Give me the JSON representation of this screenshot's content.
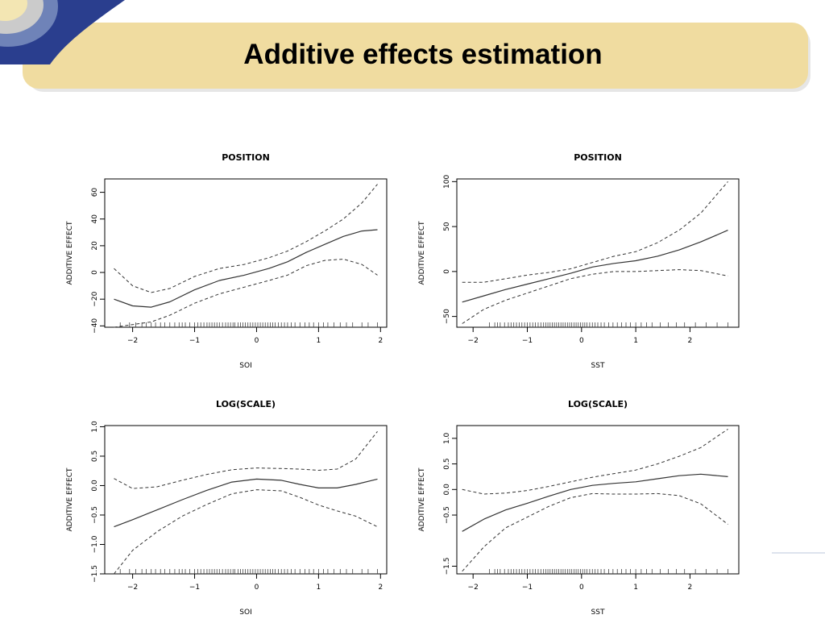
{
  "slide": {
    "title": "Additive effects estimation",
    "colors": {
      "banner": "#f0dca0",
      "banner_shadow": "#e6e6e6",
      "corner_dark": "#2a3e8e",
      "corner_mid": "#6f83b8",
      "corner_light": "#cbcbcb",
      "corner_pale": "#f3e6b3"
    }
  },
  "chart_data": [
    {
      "type": "line",
      "title": "POSITION",
      "xlabel": "SOI",
      "ylabel": "ADDITIVE EFFECT",
      "xlim": [
        -2.45,
        2.1
      ],
      "ylim": [
        -41,
        70
      ],
      "xticks": [
        -2,
        -1,
        0,
        1,
        2
      ],
      "xtick_labels": [
        "−2",
        "−1",
        "0",
        "1",
        "2"
      ],
      "yticks": [
        -40,
        -20,
        0,
        20,
        40,
        60
      ],
      "ytick_labels": [
        "−40",
        "−20",
        "0",
        "20",
        "40",
        "60"
      ],
      "grid": false,
      "series": [
        {
          "style": "solid",
          "x": [
            -2.3,
            -2.0,
            -1.7,
            -1.4,
            -1.0,
            -0.6,
            -0.2,
            0.2,
            0.5,
            0.8,
            1.1,
            1.4,
            1.7,
            1.95
          ],
          "y": [
            -20,
            -25,
            -26,
            -22,
            -13,
            -6,
            -2,
            3,
            8,
            15,
            21,
            27,
            31,
            32
          ]
        },
        {
          "style": "dashed",
          "x": [
            -2.3,
            -2.0,
            -1.7,
            -1.4,
            -1.0,
            -0.6,
            -0.2,
            0.2,
            0.5,
            0.8,
            1.1,
            1.4,
            1.7,
            1.95
          ],
          "y": [
            3,
            -10,
            -15,
            -12,
            -3,
            3,
            6,
            11,
            16,
            23,
            31,
            40,
            52,
            66
          ]
        },
        {
          "style": "dashed",
          "x": [
            -2.3,
            -2.0,
            -1.7,
            -1.4,
            -1.0,
            -0.6,
            -0.2,
            0.2,
            0.5,
            0.8,
            1.1,
            1.4,
            1.7,
            1.95
          ],
          "y": [
            -41,
            -39,
            -37,
            -32,
            -23,
            -16,
            -11,
            -6,
            -2,
            5,
            9,
            10,
            6,
            -2
          ]
        }
      ],
      "rug": [
        -2.2,
        -2.05,
        -1.95,
        -1.85,
        -1.78,
        -1.7,
        -1.63,
        -1.55,
        -1.48,
        -1.4,
        -1.32,
        -1.25,
        -1.2,
        -1.15,
        -1.08,
        -1.0,
        -0.95,
        -0.9,
        -0.85,
        -0.8,
        -0.76,
        -0.72,
        -0.68,
        -0.64,
        -0.6,
        -0.55,
        -0.5,
        -0.46,
        -0.42,
        -0.38,
        -0.35,
        -0.3,
        -0.26,
        -0.22,
        -0.18,
        -0.14,
        -0.1,
        -0.06,
        -0.02,
        0.02,
        0.06,
        0.1,
        0.14,
        0.18,
        0.22,
        0.26,
        0.3,
        0.35,
        0.4,
        0.45,
        0.5,
        0.56,
        0.62,
        0.7,
        0.78,
        0.85,
        0.92,
        1.0,
        1.08,
        1.15,
        1.25,
        1.35,
        1.45,
        1.55,
        1.7,
        1.8,
        1.95
      ]
    },
    {
      "type": "line",
      "title": "POSITION",
      "xlabel": "SST",
      "ylabel": "ADDITIVE EFFECT",
      "xlim": [
        -2.3,
        2.9
      ],
      "ylim": [
        -62,
        103
      ],
      "xticks": [
        -2,
        -1,
        0,
        1,
        2
      ],
      "xtick_labels": [
        "−2",
        "−1",
        "0",
        "1",
        "2"
      ],
      "yticks": [
        -50,
        0,
        50,
        100
      ],
      "ytick_labels": [
        "−50",
        "0",
        "50",
        "100"
      ],
      "grid": false,
      "series": [
        {
          "style": "solid",
          "x": [
            -2.2,
            -1.8,
            -1.4,
            -1.0,
            -0.6,
            -0.2,
            0.2,
            0.6,
            1.0,
            1.4,
            1.8,
            2.2,
            2.7
          ],
          "y": [
            -34,
            -27,
            -20,
            -14,
            -8,
            -2,
            5,
            9,
            12,
            17,
            24,
            33,
            46
          ]
        },
        {
          "style": "dashed",
          "x": [
            -2.2,
            -1.8,
            -1.4,
            -1.0,
            -0.6,
            -0.2,
            0.2,
            0.6,
            1.0,
            1.4,
            1.8,
            2.2,
            2.7
          ],
          "y": [
            -12,
            -12,
            -8,
            -4,
            -1,
            3,
            10,
            17,
            22,
            32,
            46,
            65,
            100
          ]
        },
        {
          "style": "dashed",
          "x": [
            -2.2,
            -1.8,
            -1.4,
            -1.0,
            -0.6,
            -0.2,
            0.2,
            0.6,
            1.0,
            1.4,
            1.8,
            2.2,
            2.7
          ],
          "y": [
            -58,
            -42,
            -32,
            -24,
            -16,
            -8,
            -3,
            0,
            0,
            1,
            2,
            1,
            -5
          ]
        }
      ],
      "rug": [
        -1.7,
        -1.6,
        -1.55,
        -1.5,
        -1.42,
        -1.35,
        -1.3,
        -1.25,
        -1.2,
        -1.15,
        -1.1,
        -1.05,
        -1.0,
        -0.95,
        -0.9,
        -0.85,
        -0.8,
        -0.75,
        -0.7,
        -0.66,
        -0.62,
        -0.58,
        -0.54,
        -0.5,
        -0.46,
        -0.42,
        -0.38,
        -0.34,
        -0.3,
        -0.26,
        -0.22,
        -0.18,
        -0.14,
        -0.1,
        -0.06,
        -0.02,
        0.02,
        0.06,
        0.1,
        0.15,
        0.2,
        0.25,
        0.3,
        0.36,
        0.42,
        0.5,
        0.58,
        0.66,
        0.74,
        0.82,
        0.9,
        1.0,
        1.1,
        1.2,
        1.3,
        1.45,
        1.6,
        1.75,
        1.9,
        2.1,
        2.3,
        2.5,
        2.7
      ]
    },
    {
      "type": "line",
      "title": "LOG(SCALE)",
      "xlabel": "SOI",
      "ylabel": "ADDITIVE EFFECT",
      "xlim": [
        -2.45,
        2.1
      ],
      "ylim": [
        -1.5,
        1.02
      ],
      "xticks": [
        -2,
        -1,
        0,
        1,
        2
      ],
      "xtick_labels": [
        "−2",
        "−1",
        "0",
        "1",
        "2"
      ],
      "yticks": [
        -1.5,
        -1.0,
        -0.5,
        0.0,
        0.5,
        1.0
      ],
      "ytick_labels": [
        "−1.5",
        "−1.0",
        "−0.5",
        "0.0",
        "0.5",
        "1.0"
      ],
      "grid": false,
      "series": [
        {
          "style": "solid",
          "x": [
            -2.3,
            -2.0,
            -1.6,
            -1.2,
            -0.8,
            -0.4,
            0.0,
            0.4,
            0.7,
            1.0,
            1.3,
            1.6,
            1.95
          ],
          "y": [
            -0.7,
            -0.58,
            -0.41,
            -0.24,
            -0.08,
            0.06,
            0.11,
            0.09,
            0.02,
            -0.04,
            -0.04,
            0.02,
            0.11
          ]
        },
        {
          "style": "dashed",
          "x": [
            -2.3,
            -2.0,
            -1.6,
            -1.2,
            -0.8,
            -0.4,
            0.0,
            0.4,
            0.7,
            1.0,
            1.3,
            1.6,
            1.95
          ],
          "y": [
            0.12,
            -0.05,
            -0.02,
            0.09,
            0.19,
            0.27,
            0.3,
            0.29,
            0.28,
            0.26,
            0.28,
            0.45,
            0.92
          ]
        },
        {
          "style": "dashed",
          "x": [
            -2.3,
            -2.0,
            -1.6,
            -1.2,
            -0.8,
            -0.4,
            0.0,
            0.4,
            0.7,
            1.0,
            1.3,
            1.6,
            1.95
          ],
          "y": [
            -1.5,
            -1.1,
            -0.78,
            -0.52,
            -0.32,
            -0.14,
            -0.07,
            -0.09,
            -0.2,
            -0.33,
            -0.43,
            -0.52,
            -0.7
          ]
        }
      ],
      "rug": [
        -2.2,
        -2.05,
        -1.95,
        -1.85,
        -1.78,
        -1.7,
        -1.63,
        -1.55,
        -1.48,
        -1.4,
        -1.32,
        -1.25,
        -1.2,
        -1.15,
        -1.08,
        -1.0,
        -0.95,
        -0.9,
        -0.85,
        -0.8,
        -0.76,
        -0.72,
        -0.68,
        -0.64,
        -0.6,
        -0.55,
        -0.5,
        -0.46,
        -0.42,
        -0.38,
        -0.35,
        -0.3,
        -0.26,
        -0.22,
        -0.18,
        -0.14,
        -0.1,
        -0.06,
        -0.02,
        0.02,
        0.06,
        0.1,
        0.14,
        0.18,
        0.22,
        0.26,
        0.3,
        0.35,
        0.4,
        0.45,
        0.5,
        0.56,
        0.62,
        0.7,
        0.78,
        0.85,
        0.92,
        1.0,
        1.08,
        1.15,
        1.25,
        1.35,
        1.45,
        1.55,
        1.7,
        1.8,
        1.95
      ]
    },
    {
      "type": "line",
      "title": "LOG(SCALE)",
      "xlabel": "SST",
      "ylabel": "ADDITIVE EFFECT",
      "xlim": [
        -2.3,
        2.9
      ],
      "ylim": [
        -1.65,
        1.25
      ],
      "xticks": [
        -2,
        -1,
        0,
        1,
        2
      ],
      "xtick_labels": [
        "−2",
        "−1",
        "0",
        "1",
        "2"
      ],
      "yticks": [
        -1.5,
        -0.5,
        0.0,
        0.5,
        1.0
      ],
      "ytick_labels": [
        "−1.5",
        "−0.5",
        "0.0",
        "0.5",
        "1.0"
      ],
      "grid": false,
      "series": [
        {
          "style": "solid",
          "x": [
            -2.2,
            -1.8,
            -1.4,
            -1.0,
            -0.6,
            -0.2,
            0.2,
            0.6,
            1.0,
            1.4,
            1.8,
            2.2,
            2.7
          ],
          "y": [
            -0.82,
            -0.58,
            -0.4,
            -0.27,
            -0.13,
            0.0,
            0.08,
            0.12,
            0.15,
            0.21,
            0.27,
            0.3,
            0.25
          ]
        },
        {
          "style": "dashed",
          "x": [
            -2.2,
            -1.8,
            -1.4,
            -1.0,
            -0.6,
            -0.2,
            0.2,
            0.6,
            1.0,
            1.4,
            1.8,
            2.2,
            2.7
          ],
          "y": [
            0.0,
            -0.09,
            -0.07,
            -0.02,
            0.06,
            0.15,
            0.24,
            0.31,
            0.38,
            0.5,
            0.65,
            0.82,
            1.18
          ]
        },
        {
          "style": "dashed",
          "x": [
            -2.2,
            -1.8,
            -1.4,
            -1.0,
            -0.6,
            -0.2,
            0.2,
            0.6,
            1.0,
            1.4,
            1.8,
            2.2,
            2.7
          ],
          "y": [
            -1.6,
            -1.12,
            -0.75,
            -0.54,
            -0.33,
            -0.16,
            -0.08,
            -0.09,
            -0.09,
            -0.08,
            -0.12,
            -0.28,
            -0.68
          ]
        }
      ],
      "rug": [
        -1.7,
        -1.6,
        -1.55,
        -1.5,
        -1.42,
        -1.35,
        -1.3,
        -1.25,
        -1.2,
        -1.15,
        -1.1,
        -1.05,
        -1.0,
        -0.95,
        -0.9,
        -0.85,
        -0.8,
        -0.75,
        -0.7,
        -0.66,
        -0.62,
        -0.58,
        -0.54,
        -0.5,
        -0.46,
        -0.42,
        -0.38,
        -0.34,
        -0.3,
        -0.26,
        -0.22,
        -0.18,
        -0.14,
        -0.1,
        -0.06,
        -0.02,
        0.02,
        0.06,
        0.1,
        0.15,
        0.2,
        0.25,
        0.3,
        0.36,
        0.42,
        0.5,
        0.58,
        0.66,
        0.74,
        0.82,
        0.9,
        1.0,
        1.1,
        1.2,
        1.3,
        1.45,
        1.6,
        1.75,
        1.9,
        2.1,
        2.3,
        2.5,
        2.7
      ]
    }
  ]
}
